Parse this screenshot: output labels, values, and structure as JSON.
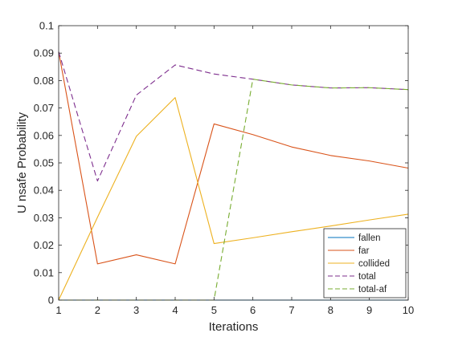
{
  "chart_data": {
    "type": "line",
    "title": "",
    "xlabel": "Iterations",
    "ylabel": "U nsafe Probability",
    "xlim": [
      1,
      10
    ],
    "ylim": [
      0,
      0.1
    ],
    "xticks": [
      "1",
      "2",
      "3",
      "4",
      "5",
      "6",
      "7",
      "8",
      "9",
      "10"
    ],
    "yticks": [
      "0",
      "0.01",
      "0.02",
      "0.03",
      "0.04",
      "0.05",
      "0.06",
      "0.07",
      "0.08",
      "0.09",
      "0.1"
    ],
    "grid": false,
    "legend_position": "bottom-right",
    "x": [
      1,
      2,
      3,
      4,
      5,
      6,
      7,
      8,
      9,
      10
    ],
    "series": [
      {
        "name": "fallen",
        "color": "#0072BD",
        "dash": "solid",
        "values": [
          0,
          0,
          0,
          0,
          0,
          0,
          0,
          0,
          0,
          0
        ]
      },
      {
        "name": "far",
        "color": "#D95319",
        "dash": "solid",
        "values": [
          0.0905,
          0.0132,
          0.0165,
          0.0132,
          0.0642,
          0.0603,
          0.0558,
          0.0527,
          0.0507,
          0.0481
        ]
      },
      {
        "name": "collided",
        "color": "#EDB120",
        "dash": "solid",
        "values": [
          0,
          0.0302,
          0.0597,
          0.0738,
          0.0206,
          0.0227,
          0.0249,
          0.027,
          0.0292,
          0.0313
        ]
      },
      {
        "name": "total",
        "color": "#7E2F8E",
        "dash": "dashed",
        "values": [
          0.0905,
          0.0434,
          0.0747,
          0.0857,
          0.0824,
          0.0805,
          0.0784,
          0.0773,
          0.0774,
          0.0767
        ]
      },
      {
        "name": "total-af",
        "color": "#77AC30",
        "dash": "dashed",
        "values": [
          0,
          0,
          0,
          0,
          0,
          0.0805,
          0.0784,
          0.0773,
          0.0774,
          0.0767
        ]
      }
    ]
  }
}
